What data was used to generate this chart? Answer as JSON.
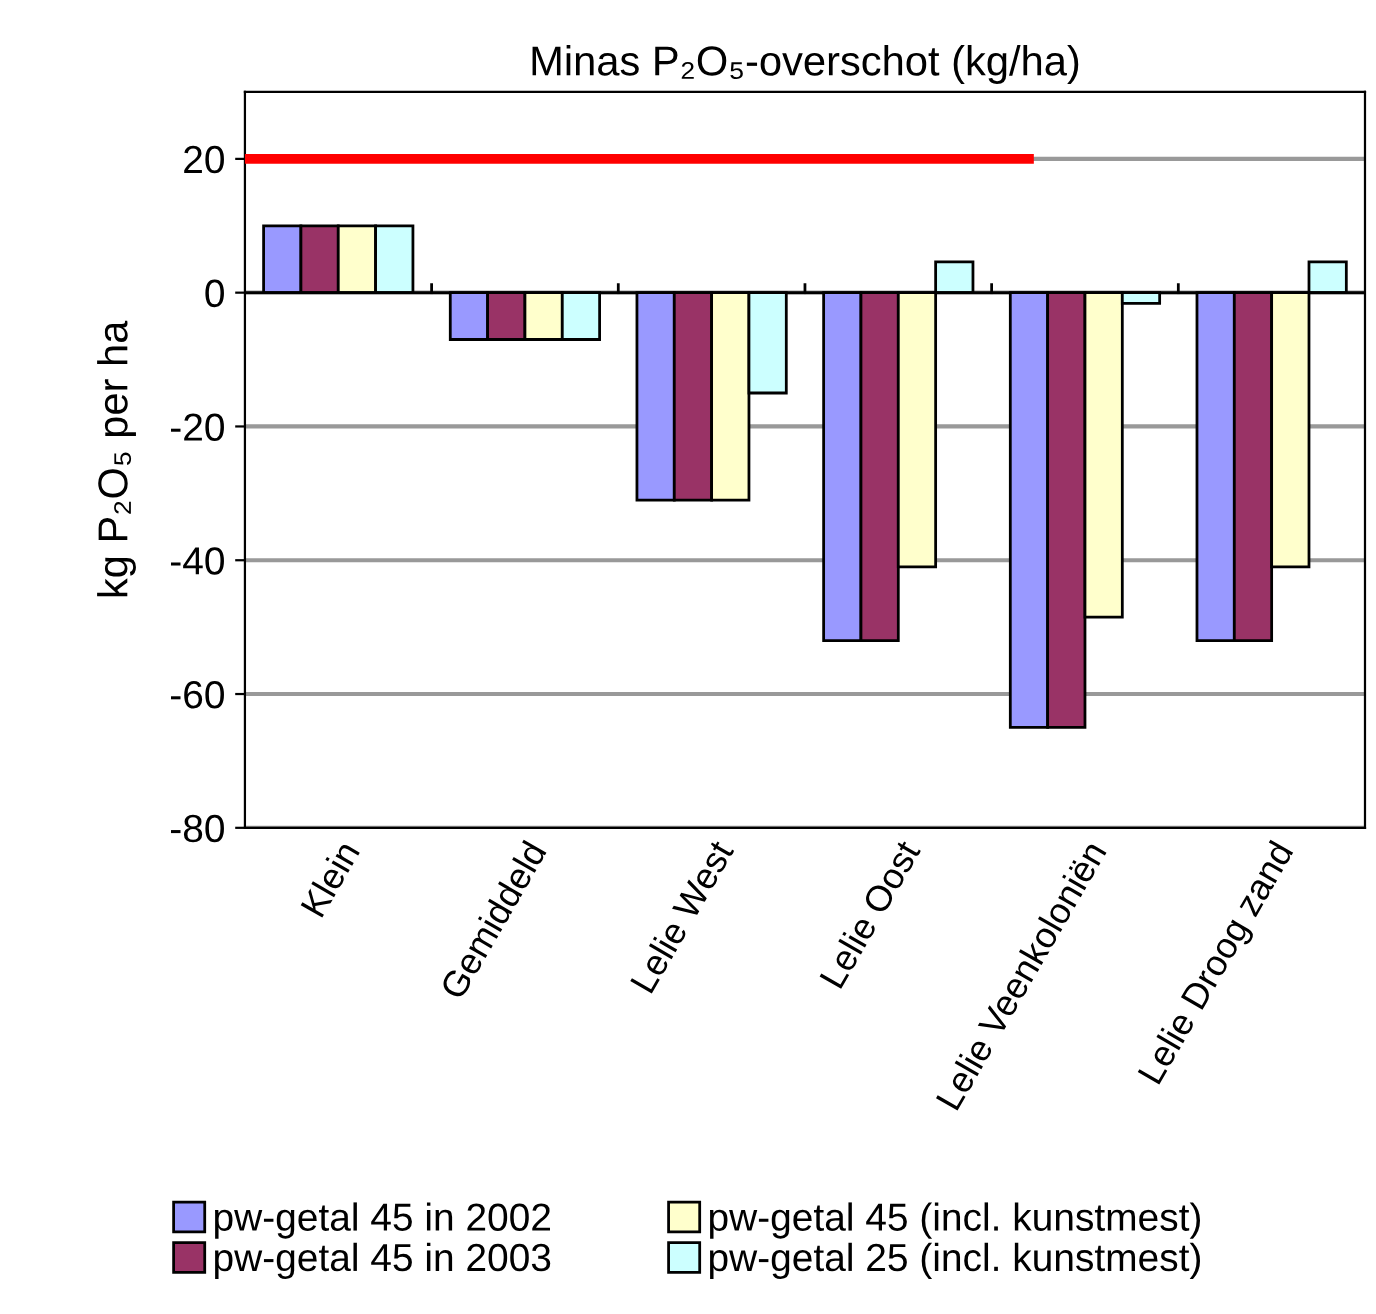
{
  "chart_data": {
    "type": "bar",
    "title": "Minas P₂O₅-overschot (kg/ha)",
    "ylabel": "kg P₂O₅ per ha",
    "categories": [
      "Klein",
      "Gemiddeld",
      "Lelie West",
      "Lelie Oost",
      "Lelie Veenkoloniën",
      "Lelie Droog zand"
    ],
    "series": [
      {
        "name": "pw-getal 45 in 2002",
        "color": "#9999ff",
        "values": [
          10,
          -7,
          -31,
          -52,
          -65,
          -52
        ]
      },
      {
        "name": "pw-getal 45 in 2003",
        "color": "#993366",
        "values": [
          10,
          -7,
          -31,
          -52,
          -65,
          -52
        ]
      },
      {
        "name": "pw-getal 45 (incl. kunstmest)",
        "color": "#ffffcc",
        "values": [
          10,
          -7,
          -31,
          -41,
          -48.5,
          -41
        ]
      },
      {
        "name": "pw-getal 25 (incl. kunstmest)",
        "color": "#ccffff",
        "values": [
          10,
          -7,
          -15,
          4.6,
          -1.6,
          4.6
        ]
      }
    ],
    "ylim": [
      -80,
      30
    ],
    "yticks": [
      -80,
      -60,
      -40,
      -20,
      0,
      20
    ],
    "grid": "y",
    "legend": "bottom",
    "ref_lines": [
      {
        "axis": "y",
        "value": 20,
        "color": "#ff0000"
      }
    ]
  }
}
